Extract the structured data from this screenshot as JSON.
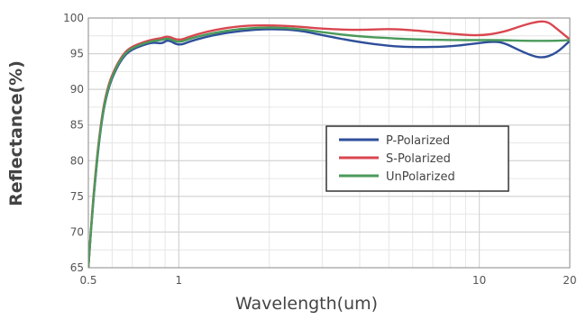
{
  "chart_data": {
    "type": "line",
    "title": "",
    "xlabel": "Wavelength(um)",
    "ylabel": "Reflectance(%)",
    "x_scale": "log",
    "xlim": [
      0.5,
      20
    ],
    "ylim": [
      65,
      100
    ],
    "x_ticks": [
      0.5,
      1,
      10,
      20
    ],
    "x_tick_labels": [
      "0.5",
      "1",
      "10",
      "20"
    ],
    "y_ticks": [
      65,
      70,
      75,
      80,
      85,
      90,
      95,
      100
    ],
    "y_tick_labels": [
      "65",
      "70",
      "75",
      "80",
      "85",
      "90",
      "95",
      "100"
    ],
    "grid": true,
    "legend_position": "center-right",
    "series": [
      {
        "name": "P-Polarized",
        "color": "#2f4f9a",
        "x": [
          0.5,
          0.52,
          0.55,
          0.58,
          0.62,
          0.66,
          0.7,
          0.76,
          0.82,
          0.88,
          0.92,
          1.0,
          1.1,
          1.3,
          1.6,
          2.0,
          2.5,
          3.0,
          4.0,
          5.0,
          6.0,
          8.0,
          10.0,
          11.0,
          12.0,
          14.0,
          16.0,
          18.0,
          20.0
        ],
        "y": [
          65,
          75,
          85,
          90,
          93,
          94.8,
          95.6,
          96.2,
          96.6,
          96.4,
          97.0,
          96.1,
          96.8,
          97.6,
          98.2,
          98.5,
          98.3,
          97.6,
          96.6,
          96.1,
          95.9,
          96.0,
          96.5,
          96.7,
          96.6,
          95.2,
          94.3,
          95.0,
          96.8
        ]
      },
      {
        "name": "S-Polarized",
        "color": "#d9464f",
        "x": [
          0.5,
          0.52,
          0.55,
          0.58,
          0.62,
          0.66,
          0.7,
          0.76,
          0.82,
          0.88,
          0.92,
          1.0,
          1.1,
          1.3,
          1.6,
          2.0,
          2.5,
          3.0,
          4.0,
          5.0,
          6.0,
          8.0,
          10.0,
          12.0,
          14.0,
          16.0,
          17.0,
          18.0,
          20.0
        ],
        "y": [
          65,
          75.5,
          85.5,
          90.5,
          93.4,
          95.2,
          96.0,
          96.6,
          97.0,
          97.2,
          97.5,
          96.8,
          97.5,
          98.3,
          98.9,
          99.0,
          98.8,
          98.5,
          98.3,
          98.5,
          98.3,
          97.8,
          97.5,
          98.0,
          99.0,
          99.6,
          99.4,
          98.6,
          97.0
        ]
      },
      {
        "name": "UnPolarized",
        "color": "#4a9a5a",
        "x": [
          0.5,
          0.52,
          0.55,
          0.58,
          0.62,
          0.66,
          0.7,
          0.76,
          0.82,
          0.88,
          0.92,
          1.0,
          1.1,
          1.3,
          1.6,
          2.0,
          2.5,
          3.0,
          4.0,
          5.0,
          6.0,
          8.0,
          10.0,
          12.0,
          14.0,
          16.0,
          18.0,
          20.0
        ],
        "y": [
          65,
          75.2,
          85.2,
          90.2,
          93.2,
          95.0,
          95.8,
          96.4,
          96.8,
          96.9,
          97.2,
          96.5,
          97.2,
          97.9,
          98.5,
          98.7,
          98.5,
          98.0,
          97.4,
          97.2,
          97.0,
          96.9,
          96.9,
          96.9,
          96.8,
          96.8,
          96.8,
          96.9
        ]
      }
    ]
  }
}
